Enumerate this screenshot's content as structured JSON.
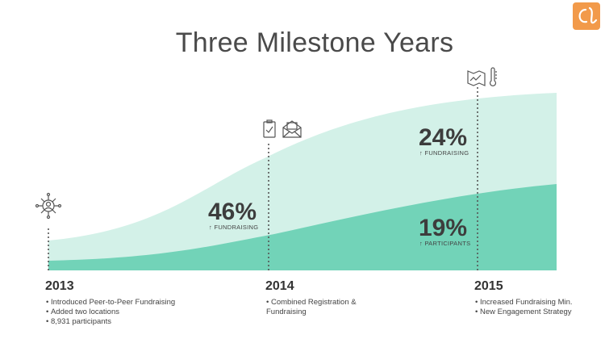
{
  "title": "Three Milestone Years",
  "milestones": [
    {
      "year": "2013",
      "items": [
        "Introduced Peer-to-Peer Fundraising",
        "Added two locations",
        "8,931 participants"
      ]
    },
    {
      "year": "2014",
      "items": [
        "Combined Registration & Fundraising"
      ]
    },
    {
      "year": "2015",
      "items": [
        "Increased Fundraising Min.",
        "New Engagement Strategy"
      ]
    }
  ],
  "stats": [
    {
      "value": "46%",
      "label": "FUNDRAISING"
    },
    {
      "value": "24%",
      "label": "FUNDRAISING"
    },
    {
      "value": "19%",
      "label": "PARTICIPANTS"
    }
  ]
}
